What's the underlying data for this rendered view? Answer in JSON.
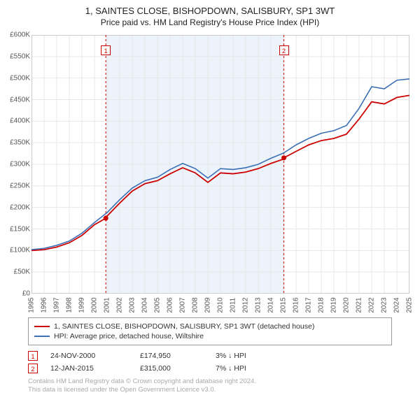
{
  "title": {
    "line1": "1, SAINTES CLOSE, BISHOPDOWN, SALISBURY, SP1 3WT",
    "line2": "Price paid vs. HM Land Registry's House Price Index (HPI)"
  },
  "chart": {
    "type": "line",
    "background_color": "#ffffff",
    "plot_border_color": "#cccccc",
    "grid_color": "#e7e7e7",
    "shaded_region": {
      "x_start": 2000.9,
      "x_end": 2015.03,
      "fill": "#eaf2f9",
      "opacity": 0.9
    },
    "x": {
      "min": 1995,
      "max": 2025,
      "ticks": [
        1995,
        1996,
        1997,
        1998,
        1999,
        2000,
        2001,
        2002,
        2003,
        2004,
        2005,
        2006,
        2007,
        2008,
        2009,
        2010,
        2011,
        2012,
        2013,
        2014,
        2015,
        2016,
        2017,
        2018,
        2019,
        2020,
        2021,
        2022,
        2023,
        2024,
        2025
      ],
      "label_fontsize": 10
    },
    "y": {
      "min": 0,
      "max": 600000,
      "ticks": [
        0,
        50000,
        100000,
        150000,
        200000,
        250000,
        300000,
        350000,
        400000,
        450000,
        500000,
        550000,
        600000
      ],
      "tick_labels": [
        "£0",
        "£50K",
        "£100K",
        "£150K",
        "£200K",
        "£250K",
        "£300K",
        "£350K",
        "£400K",
        "£450K",
        "£500K",
        "£550K",
        "£600K"
      ],
      "label_fontsize": 10
    },
    "series": [
      {
        "name": "property",
        "label": "1, SAINTES CLOSE, BISHOPDOWN, SALISBURY, SP1 3WT (detached house)",
        "color": "#cc0000",
        "line_width": 1.8,
        "x": [
          1995,
          1996,
          1997,
          1998,
          1999,
          2000,
          2000.9,
          2001,
          2002,
          2003,
          2004,
          2005,
          2006,
          2007,
          2008,
          2009,
          2010,
          2011,
          2012,
          2013,
          2014,
          2015,
          2015.03,
          2016,
          2017,
          2018,
          2019,
          2020,
          2021,
          2022,
          2023,
          2024,
          2025
        ],
        "y": [
          100000,
          102000,
          108000,
          118000,
          135000,
          160000,
          174950,
          180000,
          210000,
          238000,
          255000,
          262000,
          278000,
          292000,
          280000,
          258000,
          280000,
          278000,
          282000,
          290000,
          302000,
          312000,
          315000,
          330000,
          345000,
          355000,
          360000,
          370000,
          405000,
          445000,
          440000,
          455000,
          460000
        ]
      },
      {
        "name": "hpi",
        "label": "HPI: Average price, detached house, Wiltshire",
        "color": "#3b6fb6",
        "line_width": 1.6,
        "x": [
          1995,
          1996,
          1997,
          1998,
          1999,
          2000,
          2001,
          2002,
          2003,
          2004,
          2005,
          2006,
          2007,
          2008,
          2009,
          2010,
          2011,
          2012,
          2013,
          2014,
          2015,
          2016,
          2017,
          2018,
          2019,
          2020,
          2021,
          2022,
          2023,
          2024,
          2025
        ],
        "y": [
          102000,
          105000,
          112000,
          122000,
          140000,
          165000,
          188000,
          218000,
          245000,
          262000,
          270000,
          288000,
          302000,
          290000,
          268000,
          290000,
          288000,
          292000,
          300000,
          314000,
          326000,
          345000,
          360000,
          372000,
          378000,
          390000,
          430000,
          480000,
          475000,
          495000,
          498000
        ]
      }
    ],
    "sale_markers": [
      {
        "id": "1",
        "x": 2000.9,
        "y": 174950,
        "color": "#cc0000",
        "box_top_y": 0.04
      },
      {
        "id": "2",
        "x": 2015.03,
        "y": 315000,
        "color": "#cc0000",
        "box_top_y": 0.04
      }
    ],
    "vline_color": "#cc0000",
    "vline_dash": "3,3",
    "point_radius": 3.5
  },
  "legend": {
    "border_color": "#999999",
    "items": [
      {
        "color": "#cc0000",
        "label": "1, SAINTES CLOSE, BISHOPDOWN, SALISBURY, SP1 3WT (detached house)"
      },
      {
        "color": "#3b6fb6",
        "label": "HPI: Average price, detached house, Wiltshire"
      }
    ]
  },
  "sales_table": [
    {
      "marker": "1",
      "marker_color": "#cc0000",
      "date": "24-NOV-2000",
      "price": "£174,950",
      "delta": "3% ↓ HPI"
    },
    {
      "marker": "2",
      "marker_color": "#cc0000",
      "date": "12-JAN-2015",
      "price": "£315,000",
      "delta": "7% ↓ HPI"
    }
  ],
  "attribution": {
    "line1": "Contains HM Land Registry data © Crown copyright and database right 2024.",
    "line2": "This data is licensed under the Open Government Licence v3.0."
  }
}
